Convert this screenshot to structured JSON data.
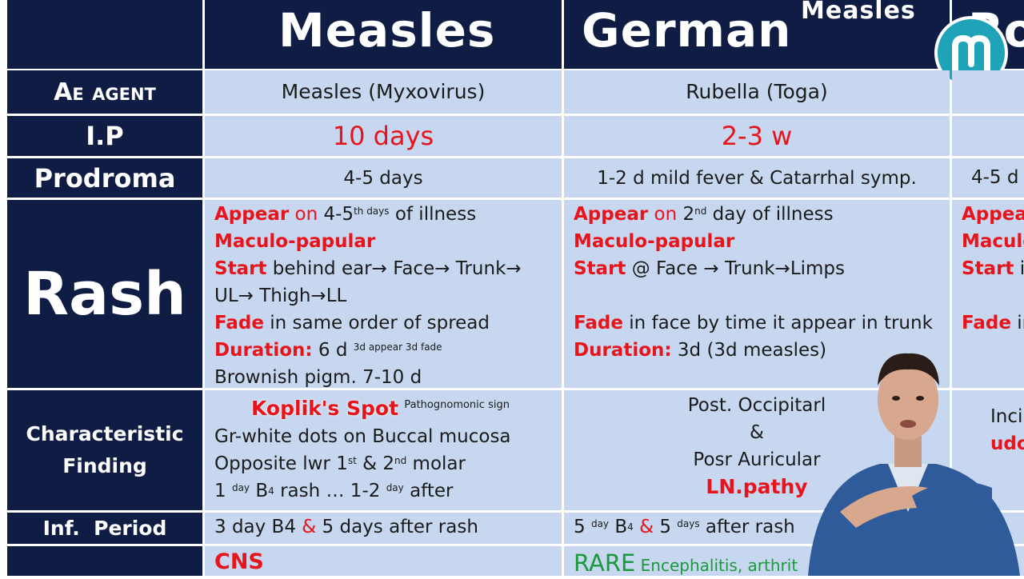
{
  "columns": {
    "measles": "Measles",
    "german": "German",
    "german_suffix": "Measles",
    "third_partial": "Ro"
  },
  "rows": {
    "agent_label": "Ae agent",
    "ip_label": "I.P",
    "prodroma_label": "Prodroma",
    "rash_label": "Rash",
    "finding_label_1": "Characteristic",
    "finding_label_2": "Finding",
    "inf_label": "Inf.  Period"
  },
  "measles": {
    "agent": "Measles (Myxovirus)",
    "ip": "10 days",
    "prodroma": "4-5 days",
    "rash": {
      "appear_kw": "Appear",
      "on_kw": "on",
      "appear_val": " 4-5",
      "appear_sup": "th days",
      "appear_rest": " of illness",
      "type": "Maculo-papular",
      "start_kw": "Start",
      "start_val": " behind ear→ Face→ Trunk→",
      "start_val2": "UL→ Thigh→LL",
      "fade_kw": "Fade",
      "fade_val": " in same order of spread",
      "duration_kw": "Duration:",
      "duration_val": "  6 d ",
      "duration_sup": "3d appear 3d fade",
      "pigm": "Brownish pigm. 7-10 d"
    },
    "finding": {
      "spot": "Koplik's Spot",
      "spot_sup": "Pathognomonic sign",
      "line1": "Gr-white dots on Buccal mucosa",
      "line2_a": "Opposite lwr 1",
      "line2_sup1": "st",
      "line2_b": " & 2",
      "line2_sup2": "nd",
      "line2_c": " molar",
      "line3_a": "1 ",
      "line3_sup1": "day",
      "line3_b": " B",
      "line3_sub": "4",
      "line3_c": " rash … 1-2 ",
      "line3_sup2": "day",
      "line3_d": " after"
    },
    "inf_a": "3 day B4 ",
    "inf_amp": "&",
    "inf_b": " 5 days after rash",
    "complication": "CNS"
  },
  "german": {
    "agent": "Rubella (Toga)",
    "ip": "2-3 w",
    "prodroma": "1-2 d mild fever & Catarrhal symp.",
    "rash": {
      "appear_kw": "Appear",
      "on_kw": "on",
      "appear_val": " 2",
      "appear_sup": "nd",
      "appear_rest": " day of illness",
      "type": "Maculo-papular",
      "start_kw": "Start",
      "start_val": " @ Face → Trunk→Limps",
      "fade_kw": "Fade",
      "fade_val": " in face by time it appear in trunk",
      "duration_kw": "Duration:",
      "duration_val": " 3d (3d measles)"
    },
    "finding": {
      "line1": "Post. Occipitarl",
      "line2": "&",
      "line3": "Posr Auricular",
      "line4": "LN.pathy"
    },
    "inf_a": "5 ",
    "inf_sup1": "day",
    "inf_b": " B",
    "inf_sub": "4",
    "inf_amp": " &",
    "inf_c": " 5 ",
    "inf_sup2": "days",
    "inf_d": " after rash",
    "complication_a": "RARE",
    "complication_b": " Encephalitis, arthrit"
  },
  "third": {
    "prodroma": "4-5 d",
    "appear": "Appear",
    "maculo": "Maculo",
    "start": "Start",
    "start_rest": " in",
    "fade": "Fade",
    "fade_rest": " in",
    "inci": "Inci",
    "udo": "udo"
  },
  "colors": {
    "navy": "#0f1d45",
    "light_blue": "#c6d7ef",
    "red": "#e8141c",
    "green": "#1a9a3c",
    "logo_teal": "#1fa3b8"
  },
  "logo": {
    "icon": "m-logo-icon"
  }
}
